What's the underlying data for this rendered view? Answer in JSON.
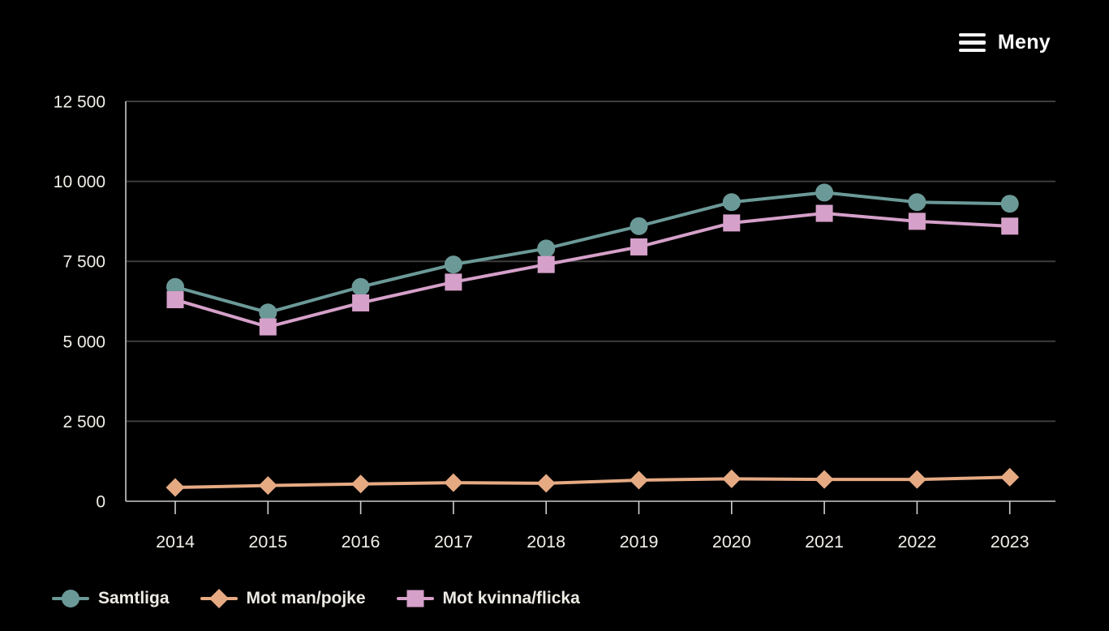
{
  "menu": {
    "label": "Meny"
  },
  "colors": {
    "background": "#000000",
    "text": "#f2efe9",
    "gridline": "#3d3d3d",
    "axis": "#c9c9c9",
    "tick": "#cfcfcf"
  },
  "chart_data": {
    "type": "line",
    "title": "",
    "xlabel": "",
    "ylabel": "",
    "categories": [
      "2014",
      "2015",
      "2016",
      "2017",
      "2018",
      "2019",
      "2020",
      "2021",
      "2022",
      "2023"
    ],
    "ylim": [
      0,
      12500
    ],
    "grid": true,
    "legend_position": "bottom-left",
    "yticks": [
      {
        "value": 0,
        "label": "0"
      },
      {
        "value": 2500,
        "label": "2 500"
      },
      {
        "value": 5000,
        "label": "5 000"
      },
      {
        "value": 7500,
        "label": "7 500"
      },
      {
        "value": 10000,
        "label": "10 000"
      },
      {
        "value": 12500,
        "label": "12 500"
      }
    ],
    "series": [
      {
        "name": "Samtliga",
        "color": "#6b9997",
        "marker": "circle",
        "values": [
          6700,
          5900,
          6700,
          7400,
          7900,
          8600,
          9350,
          9650,
          9350,
          9300
        ]
      },
      {
        "name": "Mot man/pojke",
        "color": "#e6aa83",
        "marker": "diamond",
        "values": [
          430,
          490,
          540,
          580,
          560,
          660,
          700,
          680,
          680,
          750
        ]
      },
      {
        "name": "Mot kvinna/flicka",
        "color": "#d5a0c9",
        "marker": "square",
        "values": [
          6300,
          5450,
          6200,
          6850,
          7400,
          7950,
          8700,
          9000,
          8750,
          8600
        ]
      }
    ]
  }
}
